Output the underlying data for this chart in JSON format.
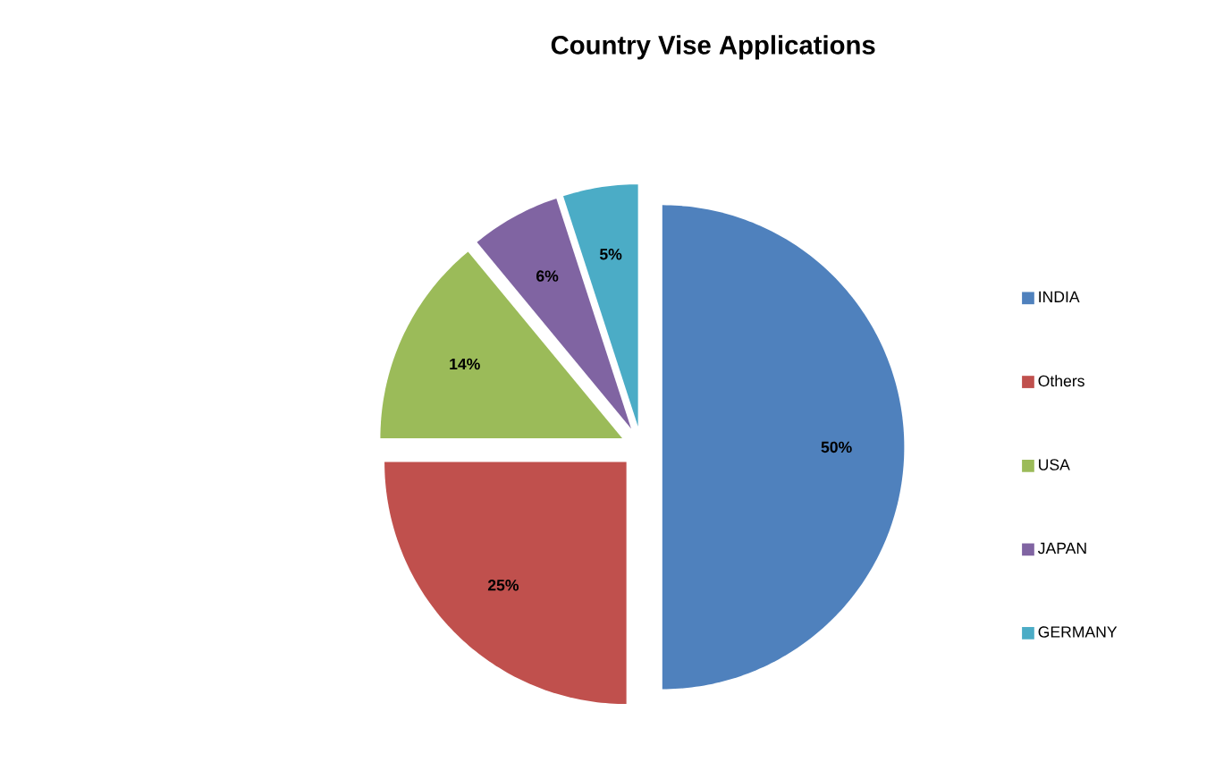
{
  "chart_data": {
    "type": "pie",
    "title": "Country Vise Applications",
    "categories": [
      "INDIA",
      "Others",
      "USA",
      "JAPAN",
      "GERMANY"
    ],
    "values": [
      50,
      25,
      14,
      6,
      5
    ],
    "value_labels": [
      "50%",
      "25%",
      "14%",
      "6%",
      "5%"
    ],
    "colors": [
      "#4f81bd",
      "#c0504d",
      "#9bbb59",
      "#8064a2",
      "#4bacc6"
    ],
    "legend": "right"
  }
}
